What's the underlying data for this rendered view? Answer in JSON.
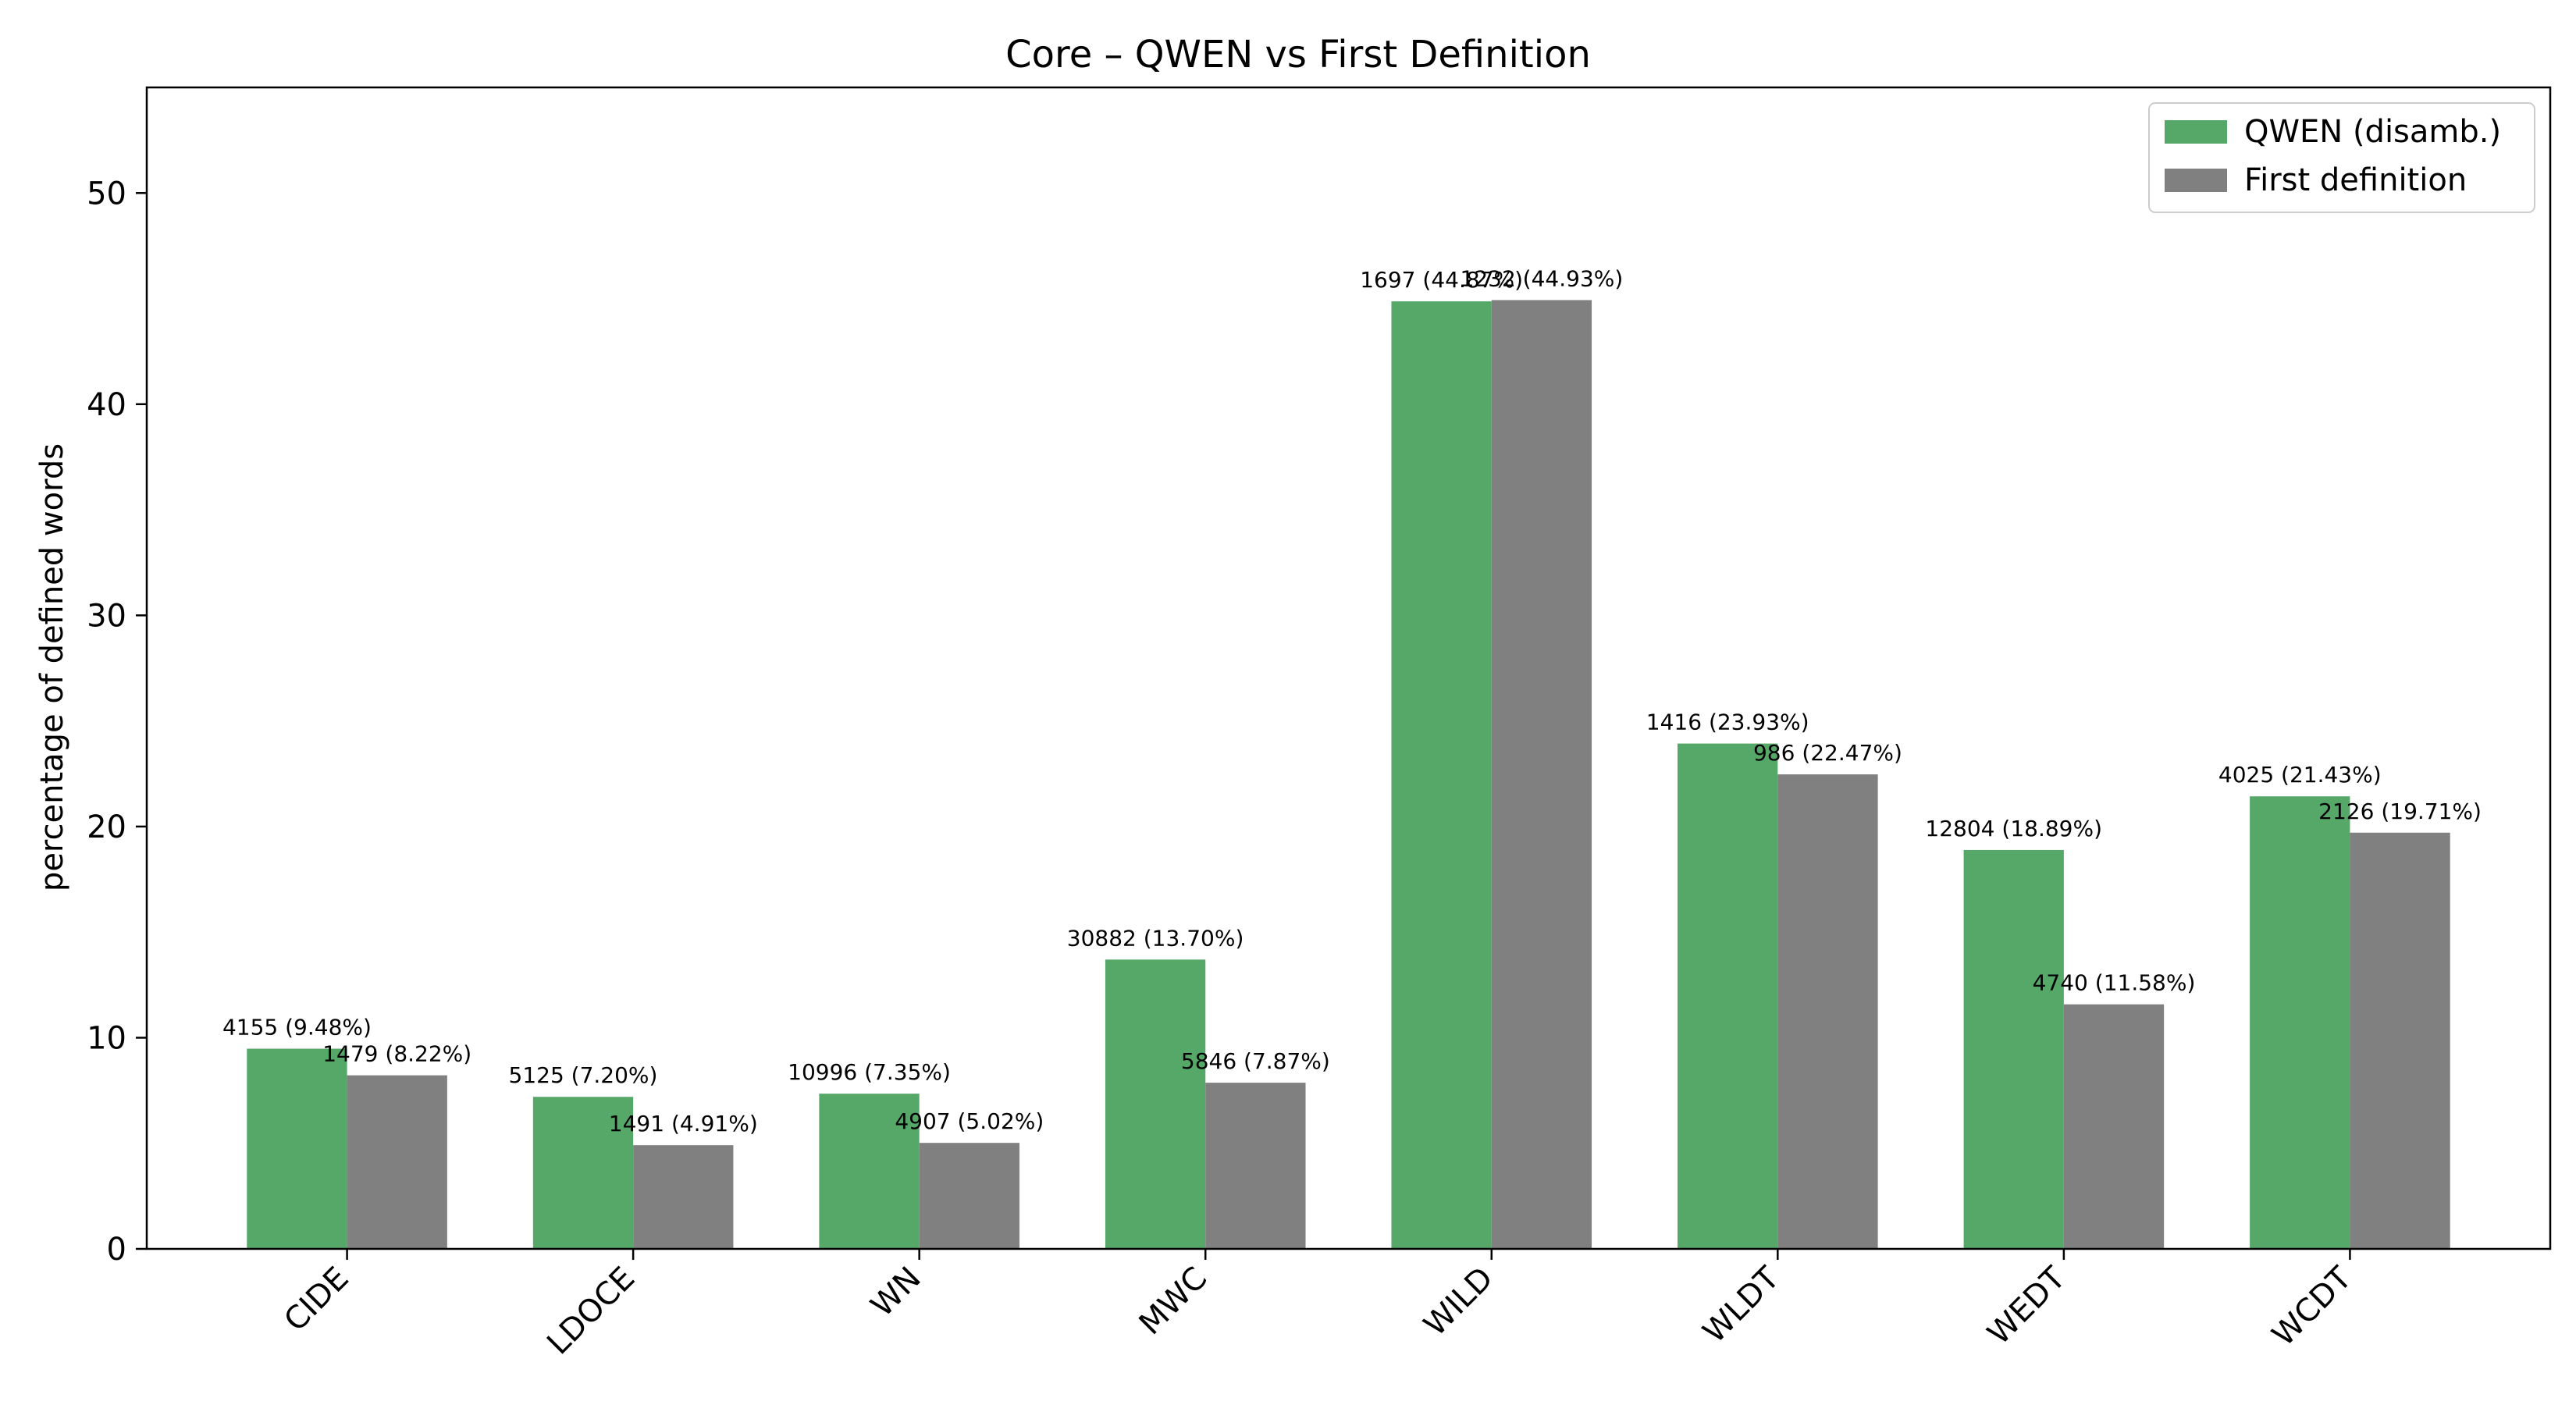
{
  "chart_data": {
    "type": "bar",
    "title": "Core – QWEN vs First Definition",
    "xlabel": "",
    "ylabel": "percentage of defined words",
    "ylim": [
      0,
      55
    ],
    "yticks": [
      0,
      10,
      20,
      30,
      40,
      50
    ],
    "grid": false,
    "legend_position": "top-right",
    "categories": [
      "CIDE",
      "LDOCE",
      "WN",
      "MWC",
      "WILD",
      "WLDT",
      "WEDT",
      "WCDT"
    ],
    "series": [
      {
        "name": "QWEN (disamb.)",
        "color": "#55a868",
        "values": [
          9.48,
          7.2,
          7.35,
          13.7,
          44.87,
          23.93,
          18.89,
          21.43
        ],
        "labels": [
          "4155 (9.48%)",
          "5125 (7.20%)",
          "10996 (7.35%)",
          "30882 (13.70%)",
          "1697 (44.87%)",
          "1416 (23.93%)",
          "12804 (18.89%)",
          "4025 (21.43%)"
        ]
      },
      {
        "name": "First definition",
        "color": "#808080",
        "values": [
          8.22,
          4.91,
          5.02,
          7.87,
          44.93,
          22.47,
          11.58,
          19.71
        ],
        "labels": [
          "1479 (8.22%)",
          "1491 (4.91%)",
          "4907 (5.02%)",
          "5846 (7.87%)",
          "1232 (44.93%)",
          "986 (22.47%)",
          "4740 (11.58%)",
          "2126 (19.71%)"
        ]
      }
    ]
  }
}
